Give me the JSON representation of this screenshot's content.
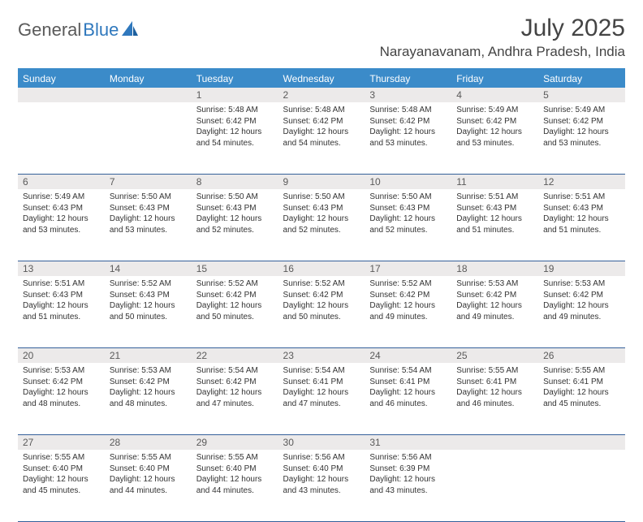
{
  "logo": {
    "part1": "General",
    "part2": "Blue"
  },
  "title": "July 2025",
  "location": "Narayanavanam, Andhra Pradesh, India",
  "colors": {
    "header_bg": "#3b8bc9",
    "daynum_bg": "#eceaea",
    "rule": "#34609a",
    "logo_gray": "#5a5a5a",
    "logo_blue": "#2f78bd"
  },
  "weekdays": [
    "Sunday",
    "Monday",
    "Tuesday",
    "Wednesday",
    "Thursday",
    "Friday",
    "Saturday"
  ],
  "weeks": [
    [
      null,
      null,
      {
        "n": "1",
        "l1": "Sunrise: 5:48 AM",
        "l2": "Sunset: 6:42 PM",
        "l3": "Daylight: 12 hours",
        "l4": "and 54 minutes."
      },
      {
        "n": "2",
        "l1": "Sunrise: 5:48 AM",
        "l2": "Sunset: 6:42 PM",
        "l3": "Daylight: 12 hours",
        "l4": "and 54 minutes."
      },
      {
        "n": "3",
        "l1": "Sunrise: 5:48 AM",
        "l2": "Sunset: 6:42 PM",
        "l3": "Daylight: 12 hours",
        "l4": "and 53 minutes."
      },
      {
        "n": "4",
        "l1": "Sunrise: 5:49 AM",
        "l2": "Sunset: 6:42 PM",
        "l3": "Daylight: 12 hours",
        "l4": "and 53 minutes."
      },
      {
        "n": "5",
        "l1": "Sunrise: 5:49 AM",
        "l2": "Sunset: 6:42 PM",
        "l3": "Daylight: 12 hours",
        "l4": "and 53 minutes."
      }
    ],
    [
      {
        "n": "6",
        "l1": "Sunrise: 5:49 AM",
        "l2": "Sunset: 6:43 PM",
        "l3": "Daylight: 12 hours",
        "l4": "and 53 minutes."
      },
      {
        "n": "7",
        "l1": "Sunrise: 5:50 AM",
        "l2": "Sunset: 6:43 PM",
        "l3": "Daylight: 12 hours",
        "l4": "and 53 minutes."
      },
      {
        "n": "8",
        "l1": "Sunrise: 5:50 AM",
        "l2": "Sunset: 6:43 PM",
        "l3": "Daylight: 12 hours",
        "l4": "and 52 minutes."
      },
      {
        "n": "9",
        "l1": "Sunrise: 5:50 AM",
        "l2": "Sunset: 6:43 PM",
        "l3": "Daylight: 12 hours",
        "l4": "and 52 minutes."
      },
      {
        "n": "10",
        "l1": "Sunrise: 5:50 AM",
        "l2": "Sunset: 6:43 PM",
        "l3": "Daylight: 12 hours",
        "l4": "and 52 minutes."
      },
      {
        "n": "11",
        "l1": "Sunrise: 5:51 AM",
        "l2": "Sunset: 6:43 PM",
        "l3": "Daylight: 12 hours",
        "l4": "and 51 minutes."
      },
      {
        "n": "12",
        "l1": "Sunrise: 5:51 AM",
        "l2": "Sunset: 6:43 PM",
        "l3": "Daylight: 12 hours",
        "l4": "and 51 minutes."
      }
    ],
    [
      {
        "n": "13",
        "l1": "Sunrise: 5:51 AM",
        "l2": "Sunset: 6:43 PM",
        "l3": "Daylight: 12 hours",
        "l4": "and 51 minutes."
      },
      {
        "n": "14",
        "l1": "Sunrise: 5:52 AM",
        "l2": "Sunset: 6:43 PM",
        "l3": "Daylight: 12 hours",
        "l4": "and 50 minutes."
      },
      {
        "n": "15",
        "l1": "Sunrise: 5:52 AM",
        "l2": "Sunset: 6:42 PM",
        "l3": "Daylight: 12 hours",
        "l4": "and 50 minutes."
      },
      {
        "n": "16",
        "l1": "Sunrise: 5:52 AM",
        "l2": "Sunset: 6:42 PM",
        "l3": "Daylight: 12 hours",
        "l4": "and 50 minutes."
      },
      {
        "n": "17",
        "l1": "Sunrise: 5:52 AM",
        "l2": "Sunset: 6:42 PM",
        "l3": "Daylight: 12 hours",
        "l4": "and 49 minutes."
      },
      {
        "n": "18",
        "l1": "Sunrise: 5:53 AM",
        "l2": "Sunset: 6:42 PM",
        "l3": "Daylight: 12 hours",
        "l4": "and 49 minutes."
      },
      {
        "n": "19",
        "l1": "Sunrise: 5:53 AM",
        "l2": "Sunset: 6:42 PM",
        "l3": "Daylight: 12 hours",
        "l4": "and 49 minutes."
      }
    ],
    [
      {
        "n": "20",
        "l1": "Sunrise: 5:53 AM",
        "l2": "Sunset: 6:42 PM",
        "l3": "Daylight: 12 hours",
        "l4": "and 48 minutes."
      },
      {
        "n": "21",
        "l1": "Sunrise: 5:53 AM",
        "l2": "Sunset: 6:42 PM",
        "l3": "Daylight: 12 hours",
        "l4": "and 48 minutes."
      },
      {
        "n": "22",
        "l1": "Sunrise: 5:54 AM",
        "l2": "Sunset: 6:42 PM",
        "l3": "Daylight: 12 hours",
        "l4": "and 47 minutes."
      },
      {
        "n": "23",
        "l1": "Sunrise: 5:54 AM",
        "l2": "Sunset: 6:41 PM",
        "l3": "Daylight: 12 hours",
        "l4": "and 47 minutes."
      },
      {
        "n": "24",
        "l1": "Sunrise: 5:54 AM",
        "l2": "Sunset: 6:41 PM",
        "l3": "Daylight: 12 hours",
        "l4": "and 46 minutes."
      },
      {
        "n": "25",
        "l1": "Sunrise: 5:55 AM",
        "l2": "Sunset: 6:41 PM",
        "l3": "Daylight: 12 hours",
        "l4": "and 46 minutes."
      },
      {
        "n": "26",
        "l1": "Sunrise: 5:55 AM",
        "l2": "Sunset: 6:41 PM",
        "l3": "Daylight: 12 hours",
        "l4": "and 45 minutes."
      }
    ],
    [
      {
        "n": "27",
        "l1": "Sunrise: 5:55 AM",
        "l2": "Sunset: 6:40 PM",
        "l3": "Daylight: 12 hours",
        "l4": "and 45 minutes."
      },
      {
        "n": "28",
        "l1": "Sunrise: 5:55 AM",
        "l2": "Sunset: 6:40 PM",
        "l3": "Daylight: 12 hours",
        "l4": "and 44 minutes."
      },
      {
        "n": "29",
        "l1": "Sunrise: 5:55 AM",
        "l2": "Sunset: 6:40 PM",
        "l3": "Daylight: 12 hours",
        "l4": "and 44 minutes."
      },
      {
        "n": "30",
        "l1": "Sunrise: 5:56 AM",
        "l2": "Sunset: 6:40 PM",
        "l3": "Daylight: 12 hours",
        "l4": "and 43 minutes."
      },
      {
        "n": "31",
        "l1": "Sunrise: 5:56 AM",
        "l2": "Sunset: 6:39 PM",
        "l3": "Daylight: 12 hours",
        "l4": "and 43 minutes."
      },
      null,
      null
    ]
  ]
}
